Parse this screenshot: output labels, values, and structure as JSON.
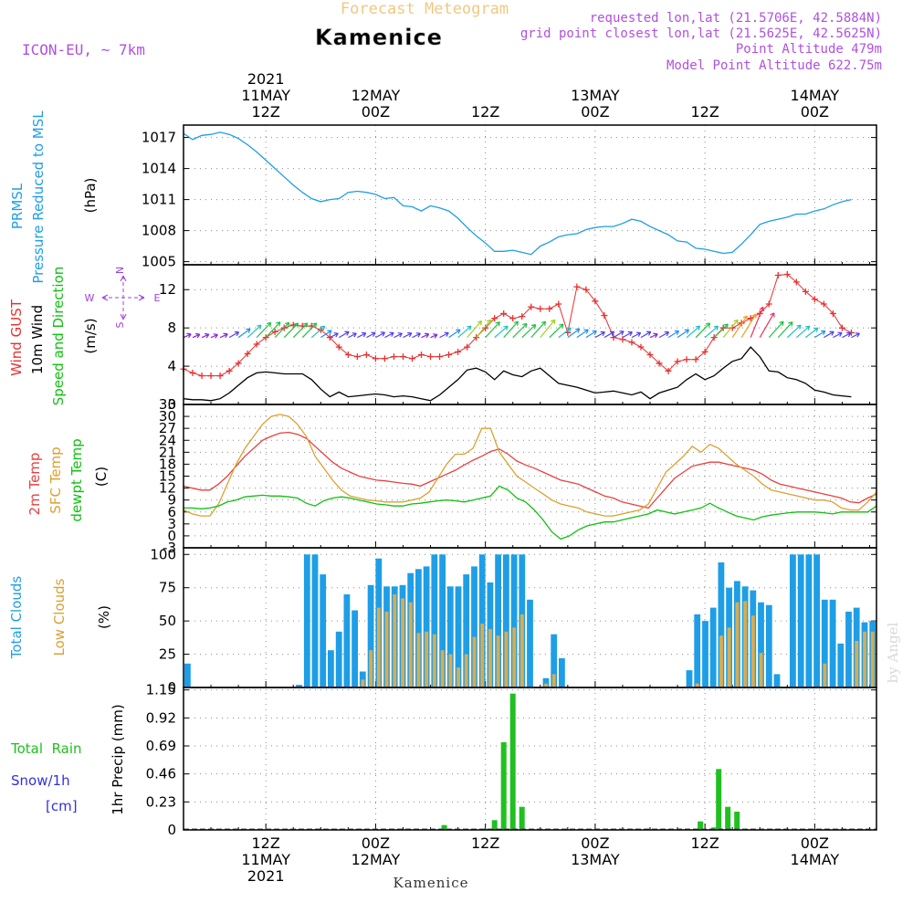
{
  "header": {
    "title": "Forecast Meteogram",
    "location": "Kamenice",
    "model": "ICON-EU, ~ 7km",
    "requested": "requested lon,lat (21.5706E, 42.5884N)",
    "grid_point": "grid point closest lon,lat (21.5625E, 42.5625N)",
    "point_altitude": "Point Altitude 479m",
    "model_altitude": "Model Point Altitude 622.75m",
    "footer_location": "Kamenice",
    "credit": "by Angel"
  },
  "time_axis": {
    "start": "2021-05-11T03Z",
    "end": "2021-05-14T09Z",
    "step_hours": 1,
    "top_labels": [
      {
        "hour": 9,
        "lines": [
          "2021",
          "11MAY",
          "12Z"
        ]
      },
      {
        "hour": 21,
        "lines": [
          "12MAY",
          "00Z"
        ]
      },
      {
        "hour": 33,
        "lines": [
          "12Z"
        ]
      },
      {
        "hour": 45,
        "lines": [
          "13MAY",
          "00Z"
        ]
      },
      {
        "hour": 57,
        "lines": [
          "12Z"
        ]
      },
      {
        "hour": 69,
        "lines": [
          "14MAY",
          "00Z"
        ]
      }
    ],
    "bottom_labels": [
      {
        "hour": 9,
        "lines": [
          "12Z",
          "11MAY",
          "2021"
        ]
      },
      {
        "hour": 21,
        "lines": [
          "00Z",
          "12MAY"
        ]
      },
      {
        "hour": 33,
        "lines": [
          "12Z"
        ]
      },
      {
        "hour": 45,
        "lines": [
          "00Z",
          "13MAY"
        ]
      },
      {
        "hour": 57,
        "lines": [
          "12Z"
        ]
      },
      {
        "hour": 69,
        "lines": [
          "00Z",
          "14MAY"
        ]
      }
    ]
  },
  "colors": {
    "frame": "#000000",
    "grid": "#8a8a8a",
    "pressure": "#1e9ee6",
    "gust": "#e83030",
    "wind": "#000000",
    "temp2m": "#e84040",
    "sfc_temp": "#dca030",
    "dewpoint": "#10c010",
    "total_clouds": "#1e9ee6",
    "low_clouds": "#d8ac50",
    "rain": "#20c020",
    "snow": "#3030e0",
    "header_purple": "#b050e0",
    "title_orange": "#f0c880"
  },
  "chart_data": [
    {
      "type": "line",
      "panel": "pressure",
      "ylabel_lines": [
        "PRMSL",
        "Pressure Reduced to MSL"
      ],
      "unit": "(hPa)",
      "ylim": [
        1004.7,
        1018.2
      ],
      "yticks": [
        1005,
        1008,
        1011,
        1014,
        1017
      ],
      "grid": true,
      "series": [
        {
          "values": [
            1017.4,
            1016.8,
            1017.2,
            1017.3,
            1017.5,
            1017.3,
            1016.9,
            1016.3,
            1015.6,
            1014.8,
            1014.0,
            1013.2,
            1012.4,
            1011.7,
            1011.1,
            1010.8,
            1011.0,
            1011.1,
            1011.7,
            1011.8,
            1011.7,
            1011.5,
            1011.1,
            1011.2,
            1010.4,
            1010.3,
            1009.9,
            1010.4,
            1010.2,
            1009.9,
            1009.2,
            1008.3,
            1007.5,
            1006.8,
            1006.0,
            1006.0,
            1006.1,
            1005.9,
            1005.7,
            1006.5,
            1006.9,
            1007.4,
            1007.6,
            1007.7,
            1008.1,
            1008.3,
            1008.4,
            1008.4,
            1008.7,
            1009.1,
            1008.9,
            1008.4,
            1008.0,
            1007.6,
            1007.0,
            1006.9,
            1006.3,
            1006.2,
            1006.0,
            1005.8,
            1005.9,
            1006.7,
            1007.6,
            1008.6,
            1008.9,
            1009.1,
            1009.3,
            1009.6,
            1009.6,
            1009.9,
            1010.1,
            1010.5,
            1010.8,
            1011.0
          ]
        }
      ]
    },
    {
      "type": "line",
      "panel": "wind",
      "ylabel_lines": [
        "Wind GUST",
        "10m Wind",
        "Speed and Direction"
      ],
      "unit": "(m/s)",
      "compass": {
        "n": "N",
        "s": "S",
        "w": "W",
        "e": "E"
      },
      "ylim": [
        0,
        14.6
      ],
      "yticks": [
        0,
        4,
        8,
        12
      ],
      "grid": true,
      "series": [
        {
          "name": "Wind GUST",
          "values": [
            3.7,
            3.3,
            3.0,
            3.0,
            3.0,
            3.5,
            4.3,
            5.3,
            6.3,
            7.0,
            7.6,
            8.0,
            8.3,
            8.2,
            8.2,
            7.8,
            7.0,
            6.0,
            5.2,
            5.0,
            5.2,
            4.8,
            4.8,
            5.0,
            5.0,
            4.8,
            5.2,
            5.0,
            5.0,
            5.2,
            5.5,
            6.0,
            7.0,
            8.0,
            9.0,
            9.5,
            9.0,
            9.2,
            10.2,
            10.0,
            10.0,
            10.5,
            7.5,
            12.3,
            12.0,
            10.8,
            9.3,
            7.0,
            6.8,
            6.5,
            6.0,
            5.2,
            4.3,
            3.5,
            4.5,
            4.7,
            4.7,
            5.5,
            7.0,
            8.0,
            8.0,
            8.5,
            9.0,
            9.5,
            10.5,
            13.5,
            13.6,
            12.8,
            11.8,
            11.0,
            10.5,
            9.5,
            8.0,
            7.5
          ]
        },
        {
          "name": "10m Wind",
          "values": [
            0.6,
            0.5,
            0.5,
            0.4,
            0.6,
            1.2,
            2.0,
            2.8,
            3.3,
            3.4,
            3.3,
            3.2,
            3.2,
            3.2,
            2.6,
            1.6,
            0.8,
            1.3,
            0.8,
            0.9,
            1.0,
            1.1,
            1.0,
            0.8,
            0.9,
            0.8,
            0.6,
            0.4,
            1.0,
            1.8,
            2.6,
            3.6,
            3.8,
            3.4,
            2.6,
            3.5,
            3.1,
            2.9,
            3.5,
            3.8,
            3.0,
            2.2,
            2.0,
            1.8,
            1.5,
            1.2,
            1.3,
            1.4,
            1.2,
            1.0,
            1.3,
            0.6,
            1.2,
            1.5,
            1.8,
            2.6,
            3.2,
            2.6,
            3.0,
            3.8,
            4.5,
            4.8,
            6.0,
            5.0,
            3.5,
            3.4,
            2.8,
            2.6,
            2.2,
            1.5,
            1.3,
            1.0,
            0.9,
            0.8
          ]
        }
      ]
    },
    {
      "type": "line",
      "panel": "temperature",
      "ylabel_lines": [
        "2m Temp",
        "SFC Temp",
        "dewpt Temp"
      ],
      "unit": "(C)",
      "ylim": [
        -3,
        33
      ],
      "yticks": [
        -3,
        0,
        3,
        6,
        9,
        12,
        15,
        18,
        21,
        24,
        27,
        30,
        33
      ],
      "grid": true,
      "series": [
        {
          "name": "2m Temp",
          "values": [
            12.5,
            12.0,
            11.5,
            11.5,
            13.0,
            15.0,
            17.5,
            20.0,
            22.0,
            24.0,
            25.0,
            25.8,
            26.0,
            25.5,
            24.5,
            22.5,
            20.5,
            18.5,
            17.0,
            16.0,
            15.0,
            14.5,
            14.0,
            13.8,
            13.5,
            13.2,
            13.0,
            12.5,
            13.5,
            14.5,
            15.5,
            16.5,
            17.8,
            19.0,
            20.0,
            21.2,
            21.8,
            20.5,
            18.8,
            17.8,
            17.0,
            16.0,
            15.0,
            14.0,
            13.5,
            13.0,
            12.0,
            11.0,
            10.0,
            9.5,
            8.5,
            8.0,
            7.5,
            7.0,
            9.5,
            12.0,
            14.5,
            16.0,
            17.5,
            18.0,
            18.5,
            18.5,
            18.0,
            17.5,
            17.0,
            16.5,
            15.5,
            14.0,
            13.0,
            12.5,
            12.0,
            11.5,
            11.0,
            10.5,
            10.0,
            9.5,
            8.5,
            8.3,
            9.5,
            10.5
          ]
        },
        {
          "name": "SFC Temp",
          "values": [
            6.5,
            5.5,
            5.0,
            5.0,
            8.0,
            13.0,
            18.0,
            22.0,
            25.0,
            28.0,
            30.0,
            30.5,
            30.0,
            28.0,
            25.0,
            20.0,
            17.0,
            14.0,
            11.5,
            10.0,
            9.5,
            9.0,
            8.8,
            8.5,
            8.5,
            8.5,
            9.0,
            9.5,
            11.0,
            14.5,
            18.0,
            20.5,
            20.5,
            22.0,
            27.0,
            27.0,
            21.0,
            18.0,
            15.0,
            13.5,
            12.0,
            10.5,
            9.0,
            8.0,
            7.5,
            7.0,
            6.0,
            5.5,
            5.0,
            5.0,
            5.5,
            6.0,
            6.5,
            8.0,
            12.0,
            16.0,
            18.0,
            20.0,
            22.5,
            21.0,
            23.0,
            22.0,
            20.0,
            18.0,
            16.5,
            15.0,
            13.0,
            11.5,
            11.0,
            10.5,
            10.0,
            9.5,
            9.0,
            9.0,
            8.5,
            7.0,
            6.5,
            6.5,
            8.5,
            11.0
          ]
        },
        {
          "name": "dewpt Temp",
          "values": [
            7.0,
            7.0,
            6.8,
            7.0,
            7.5,
            8.5,
            9.0,
            9.8,
            10.0,
            10.2,
            10.0,
            10.0,
            9.8,
            9.5,
            8.2,
            7.5,
            8.8,
            9.5,
            9.8,
            9.5,
            9.0,
            8.5,
            8.0,
            7.8,
            7.5,
            7.5,
            8.0,
            8.2,
            8.5,
            8.8,
            9.0,
            8.8,
            8.5,
            9.0,
            9.5,
            10.0,
            12.5,
            11.5,
            9.5,
            8.5,
            6.5,
            4.0,
            1.0,
            -0.8,
            0.0,
            1.5,
            2.5,
            3.0,
            3.5,
            3.5,
            4.0,
            4.5,
            5.0,
            5.5,
            6.5,
            6.0,
            5.5,
            6.0,
            6.5,
            7.0,
            8.2,
            7.0,
            6.0,
            5.0,
            4.5,
            4.0,
            4.8,
            5.2,
            5.5,
            5.8,
            6.0,
            6.0,
            6.0,
            5.8,
            5.5,
            6.0,
            6.0,
            6.0,
            6.0,
            7.5
          ]
        }
      ]
    },
    {
      "type": "bar",
      "panel": "clouds",
      "ylabel_lines": [
        "Total Clouds",
        "Low Clouds"
      ],
      "unit": "(%)",
      "ylim": [
        0,
        105
      ],
      "yticks": [
        0,
        25,
        50,
        75,
        100
      ],
      "grid": true,
      "series": [
        {
          "name": "Total Clouds",
          "values": [
            18,
            0,
            0,
            0,
            0,
            0,
            0,
            0,
            0,
            0,
            0,
            0,
            0,
            0,
            2,
            100,
            100,
            85,
            28,
            42,
            70,
            58,
            12,
            77,
            97,
            76,
            76,
            77,
            86,
            89,
            91,
            100,
            100,
            76,
            76,
            85,
            91,
            100,
            79,
            100,
            100,
            100,
            100,
            66,
            0,
            7,
            40,
            22,
            0,
            0,
            0,
            0,
            0,
            0,
            0,
            0,
            0,
            0,
            0,
            0,
            0,
            0,
            0,
            13,
            55,
            50,
            60,
            94,
            75,
            80,
            76,
            73,
            64,
            62,
            10,
            0,
            100,
            100,
            100,
            100,
            66,
            66,
            33,
            57,
            60,
            49,
            50
          ]
        },
        {
          "name": "Low Clouds",
          "values": [
            0,
            0,
            0,
            0,
            0,
            0,
            0,
            0,
            0,
            0,
            0,
            0,
            0,
            0,
            0,
            0,
            0,
            0,
            0,
            0,
            0,
            0,
            6,
            28,
            60,
            57,
            70,
            67,
            64,
            41,
            42,
            40,
            28,
            25,
            15,
            25,
            38,
            48,
            44,
            39,
            42,
            45,
            55,
            0,
            0,
            3,
            10,
            0,
            0,
            0,
            0,
            0,
            0,
            0,
            0,
            0,
            0,
            0,
            0,
            0,
            0,
            0,
            0,
            0,
            3,
            0,
            0,
            39,
            45,
            64,
            65,
            54,
            26,
            0,
            0,
            0,
            0,
            0,
            0,
            0,
            18,
            0,
            0,
            0,
            35,
            42,
            42
          ]
        }
      ]
    },
    {
      "type": "bar",
      "panel": "precipitation",
      "ylabel_lines": [
        "Total  Rain",
        "Snow/1h",
        "[cm]"
      ],
      "ytitle": "1hr Precip (mm)",
      "ylim": [
        0,
        1.17
      ],
      "yticks": [
        0,
        0.23,
        0.46,
        0.69,
        0.92,
        1.15
      ],
      "grid": true,
      "series": [
        {
          "name": "Total Rain",
          "points": [
            [
              28.5,
              0.04
            ],
            [
              33.0,
              0.01
            ],
            [
              34.0,
              0.08
            ],
            [
              35.0,
              0.72
            ],
            [
              36.0,
              1.12
            ],
            [
              37.0,
              0.19
            ],
            [
              56.5,
              0.07
            ],
            [
              58.0,
              0.02
            ],
            [
              58.5,
              0.5
            ],
            [
              59.5,
              0.19
            ],
            [
              60.5,
              0.15
            ]
          ]
        }
      ]
    }
  ]
}
